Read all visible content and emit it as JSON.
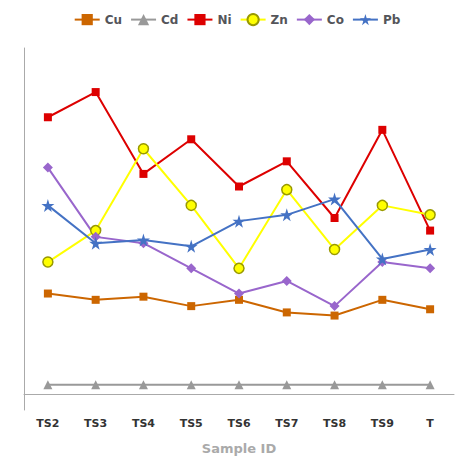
{
  "chart_data": {
    "type": "line",
    "xlabel": "Sample ID",
    "categories": [
      "TS2",
      "TS3",
      "TS4",
      "TS5",
      "TS6",
      "TS7",
      "TS8",
      "TS9",
      "T"
    ],
    "series": [
      {
        "name": "Cu",
        "color": "#cc6600",
        "marker": "square",
        "values": [
          32,
          30,
          31,
          28,
          30,
          26,
          25,
          30,
          27
        ]
      },
      {
        "name": "Cd",
        "color": "#999999",
        "marker": "triangle",
        "values": [
          3,
          3,
          3,
          3,
          3,
          3,
          3,
          3,
          3
        ]
      },
      {
        "name": "Ni",
        "color": "#dd0000",
        "marker": "square",
        "values": [
          88,
          96,
          70,
          81,
          66,
          74,
          56,
          84,
          52
        ]
      },
      {
        "name": "Zn",
        "color": "#ffff00",
        "marker": "circle",
        "values": [
          42,
          52,
          78,
          60,
          40,
          65,
          46,
          60,
          57
        ]
      },
      {
        "name": "Co",
        "color": "#9966cc",
        "marker": "diamond",
        "values": [
          72,
          50,
          48,
          40,
          32,
          36,
          28,
          42,
          40
        ]
      },
      {
        "name": "Pb",
        "color": "#4472c4",
        "marker": "star",
        "values": [
          60,
          48,
          49,
          47,
          55,
          57,
          62,
          43,
          46
        ]
      }
    ],
    "ylim": [
      -5,
      110
    ],
    "tick_labels": "x",
    "grid": false,
    "legend": "top"
  }
}
